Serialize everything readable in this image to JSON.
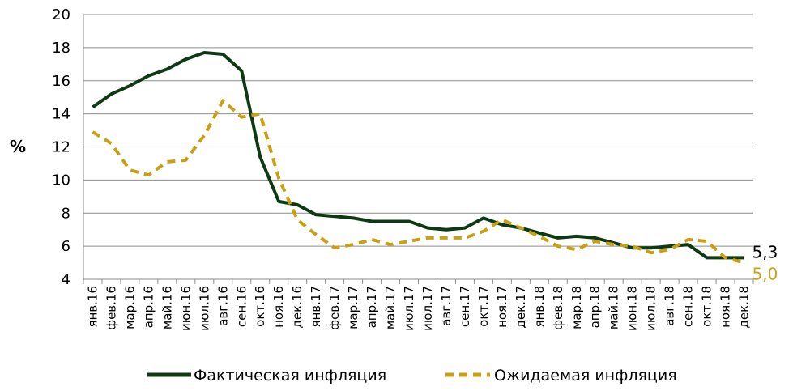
{
  "chart_data": {
    "type": "line",
    "ylabel": "%",
    "ylim": [
      4,
      20
    ],
    "yticks": [
      4,
      6,
      8,
      10,
      12,
      14,
      16,
      18,
      20
    ],
    "grid": true,
    "legend_position": "bottom",
    "x": [
      "янв.16",
      "фев.16",
      "мар.16",
      "апр.16",
      "май.16",
      "июн.16",
      "июл.16",
      "авг.16",
      "сен.16",
      "окт.16",
      "ноя.16",
      "дек.16",
      "янв.17",
      "фев.17",
      "мар.17",
      "апр.17",
      "май.17",
      "июл.17",
      "июл.17",
      "авг.17",
      "сен.17",
      "окт.17",
      "ноя.17",
      "дек.17",
      "янв.18",
      "фев.18",
      "мар.18",
      "апр.18",
      "май.18",
      "июн.18",
      "июл.18",
      "авг.18",
      "сен.18",
      "окт.18",
      "ноя.18",
      "дек.18"
    ],
    "series": [
      {
        "name": "Фактическая инфляция",
        "color": "#0e3a13",
        "style": "solid",
        "values": [
          14.4,
          15.2,
          15.7,
          16.3,
          16.7,
          17.3,
          17.7,
          17.6,
          16.6,
          11.4,
          8.7,
          8.5,
          7.9,
          7.8,
          7.7,
          7.5,
          7.5,
          7.5,
          7.1,
          7.0,
          7.1,
          7.7,
          7.3,
          7.1,
          6.8,
          6.5,
          6.6,
          6.5,
          6.2,
          5.9,
          5.9,
          6.0,
          6.1,
          5.3,
          5.3,
          5.3
        ],
        "end_label": "5,3"
      },
      {
        "name": "Ожидаемая инфляция",
        "color": "#c9a012",
        "style": "dashed",
        "values": [
          12.9,
          12.2,
          10.6,
          10.3,
          11.1,
          11.2,
          12.7,
          14.8,
          13.8,
          14.0,
          10.1,
          7.6,
          6.7,
          5.9,
          6.1,
          6.4,
          6.1,
          6.3,
          6.5,
          6.5,
          6.5,
          6.9,
          7.6,
          7.1,
          6.6,
          6.0,
          5.8,
          6.3,
          6.1,
          6.0,
          5.6,
          5.8,
          6.4,
          6.3,
          5.3,
          5.0
        ],
        "end_label": "5,0"
      }
    ]
  }
}
